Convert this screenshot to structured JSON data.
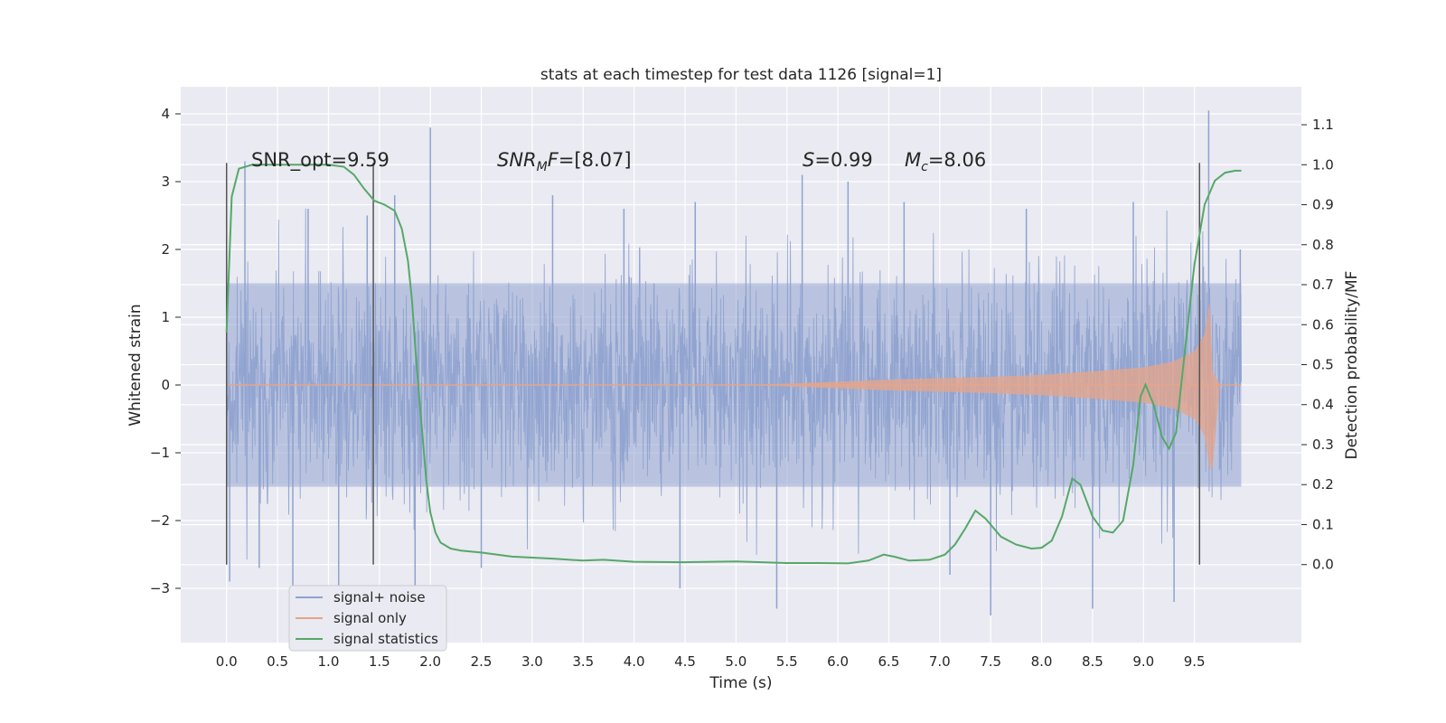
{
  "chart_data": {
    "type": "line",
    "title": "stats at each timestep for test data 1126 [signal=1]",
    "xlabel": "Time (s)",
    "ylabel_left": "Whitened strain",
    "ylabel_right": "Detection probability/MF",
    "xlim": [
      -0.45,
      10.55
    ],
    "ylim_left": [
      -3.8,
      4.4
    ],
    "ylim_right": [
      -0.195,
      1.195
    ],
    "x_ticks": [
      "0.0",
      "0.5",
      "1.0",
      "1.5",
      "2.0",
      "2.5",
      "3.0",
      "3.5",
      "4.0",
      "4.5",
      "5.0",
      "5.5",
      "6.0",
      "6.5",
      "7.0",
      "7.5",
      "8.0",
      "8.5",
      "9.0",
      "9.5"
    ],
    "y_ticks_left": [
      "4",
      "3",
      "2",
      "1",
      "0",
      "−1",
      "−2",
      "−3"
    ],
    "y_ticks_right": [
      "1.1",
      "1.0",
      "0.9",
      "0.8",
      "0.7",
      "0.6",
      "0.5",
      "0.4",
      "0.3",
      "0.2",
      "0.1",
      "0.0"
    ],
    "grid": true,
    "legend_position": "lower left",
    "series": [
      {
        "name": "signal+ noise",
        "color": "#8fa3cf",
        "axis": "left",
        "kind": "dense noise",
        "typical_band": [
          -1.5,
          1.5
        ],
        "values": [
          {
            "x": 0.0,
            "y": 2.0
          },
          {
            "x": 0.03,
            "y": -2.9
          },
          {
            "x": 0.18,
            "y": 3.3
          },
          {
            "x": 0.32,
            "y": -2.7
          },
          {
            "x": 0.65,
            "y": -3.1
          },
          {
            "x": 0.8,
            "y": 2.6
          },
          {
            "x": 1.1,
            "y": -3.0
          },
          {
            "x": 1.38,
            "y": 2.5
          },
          {
            "x": 1.65,
            "y": 2.8
          },
          {
            "x": 1.85,
            "y": -3.1
          },
          {
            "x": 2.0,
            "y": 3.8
          },
          {
            "x": 2.5,
            "y": -2.7
          },
          {
            "x": 3.2,
            "y": 2.8
          },
          {
            "x": 3.9,
            "y": 2.6
          },
          {
            "x": 4.45,
            "y": -3.0
          },
          {
            "x": 4.6,
            "y": 2.7
          },
          {
            "x": 5.4,
            "y": -3.3
          },
          {
            "x": 5.65,
            "y": 3.1
          },
          {
            "x": 6.1,
            "y": 3.0
          },
          {
            "x": 6.65,
            "y": 2.7
          },
          {
            "x": 7.1,
            "y": -2.8
          },
          {
            "x": 7.5,
            "y": -3.4
          },
          {
            "x": 7.85,
            "y": 2.6
          },
          {
            "x": 8.5,
            "y": -3.3
          },
          {
            "x": 8.9,
            "y": 2.7
          },
          {
            "x": 9.3,
            "y": -3.2
          },
          {
            "x": 9.64,
            "y": 4.05
          },
          {
            "x": 9.95,
            "y": 2.0
          }
        ]
      },
      {
        "name": "signal only",
        "color": "#e3a58c",
        "axis": "left",
        "kind": "chirp envelope",
        "values": [
          {
            "x": 0.0,
            "y": 0.0
          },
          {
            "x": 5.0,
            "y": 0.0
          },
          {
            "x": 5.5,
            "y": 0.02
          },
          {
            "x": 6.0,
            "y": 0.05
          },
          {
            "x": 6.5,
            "y": 0.08
          },
          {
            "x": 7.0,
            "y": 0.1
          },
          {
            "x": 7.5,
            "y": 0.12
          },
          {
            "x": 8.0,
            "y": 0.15
          },
          {
            "x": 8.5,
            "y": 0.2
          },
          {
            "x": 9.0,
            "y": 0.26
          },
          {
            "x": 9.3,
            "y": 0.35
          },
          {
            "x": 9.5,
            "y": 0.5
          },
          {
            "x": 9.6,
            "y": 0.75
          },
          {
            "x": 9.65,
            "y": 1.25
          },
          {
            "x": 9.68,
            "y": 0.2
          },
          {
            "x": 9.75,
            "y": 0.0
          },
          {
            "x": 10.0,
            "y": 0.0
          }
        ]
      },
      {
        "name": "signal statistics",
        "color": "#55a868",
        "axis": "right",
        "values": [
          {
            "x": 0.0,
            "y": 0.58
          },
          {
            "x": 0.05,
            "y": 0.92
          },
          {
            "x": 0.12,
            "y": 0.99
          },
          {
            "x": 0.25,
            "y": 1.0
          },
          {
            "x": 0.5,
            "y": 1.0
          },
          {
            "x": 1.0,
            "y": 1.0
          },
          {
            "x": 1.15,
            "y": 0.995
          },
          {
            "x": 1.25,
            "y": 0.975
          },
          {
            "x": 1.35,
            "y": 0.94
          },
          {
            "x": 1.45,
            "y": 0.91
          },
          {
            "x": 1.55,
            "y": 0.9
          },
          {
            "x": 1.65,
            "y": 0.885
          },
          {
            "x": 1.72,
            "y": 0.84
          },
          {
            "x": 1.78,
            "y": 0.76
          },
          {
            "x": 1.82,
            "y": 0.66
          },
          {
            "x": 1.85,
            "y": 0.55
          },
          {
            "x": 1.88,
            "y": 0.45
          },
          {
            "x": 1.92,
            "y": 0.33
          },
          {
            "x": 1.96,
            "y": 0.21
          },
          {
            "x": 2.0,
            "y": 0.13
          },
          {
            "x": 2.05,
            "y": 0.08
          },
          {
            "x": 2.1,
            "y": 0.055
          },
          {
            "x": 2.2,
            "y": 0.04
          },
          {
            "x": 2.3,
            "y": 0.035
          },
          {
            "x": 2.5,
            "y": 0.03
          },
          {
            "x": 2.8,
            "y": 0.02
          },
          {
            "x": 3.2,
            "y": 0.015
          },
          {
            "x": 3.5,
            "y": 0.01
          },
          {
            "x": 3.7,
            "y": 0.012
          },
          {
            "x": 4.0,
            "y": 0.007
          },
          {
            "x": 4.5,
            "y": 0.006
          },
          {
            "x": 5.0,
            "y": 0.008
          },
          {
            "x": 5.5,
            "y": 0.004
          },
          {
            "x": 5.8,
            "y": 0.004
          },
          {
            "x": 6.1,
            "y": 0.003
          },
          {
            "x": 6.3,
            "y": 0.01
          },
          {
            "x": 6.45,
            "y": 0.025
          },
          {
            "x": 6.55,
            "y": 0.02
          },
          {
            "x": 6.7,
            "y": 0.01
          },
          {
            "x": 6.9,
            "y": 0.012
          },
          {
            "x": 7.05,
            "y": 0.025
          },
          {
            "x": 7.15,
            "y": 0.05
          },
          {
            "x": 7.25,
            "y": 0.09
          },
          {
            "x": 7.35,
            "y": 0.135
          },
          {
            "x": 7.45,
            "y": 0.115
          },
          {
            "x": 7.6,
            "y": 0.07
          },
          {
            "x": 7.75,
            "y": 0.05
          },
          {
            "x": 7.9,
            "y": 0.04
          },
          {
            "x": 8.0,
            "y": 0.042
          },
          {
            "x": 8.1,
            "y": 0.06
          },
          {
            "x": 8.2,
            "y": 0.12
          },
          {
            "x": 8.3,
            "y": 0.215
          },
          {
            "x": 8.38,
            "y": 0.2
          },
          {
            "x": 8.5,
            "y": 0.12
          },
          {
            "x": 8.6,
            "y": 0.085
          },
          {
            "x": 8.7,
            "y": 0.08
          },
          {
            "x": 8.8,
            "y": 0.11
          },
          {
            "x": 8.9,
            "y": 0.25
          },
          {
            "x": 8.97,
            "y": 0.42
          },
          {
            "x": 9.02,
            "y": 0.45
          },
          {
            "x": 9.1,
            "y": 0.4
          },
          {
            "x": 9.18,
            "y": 0.32
          },
          {
            "x": 9.25,
            "y": 0.29
          },
          {
            "x": 9.32,
            "y": 0.33
          },
          {
            "x": 9.4,
            "y": 0.52
          },
          {
            "x": 9.5,
            "y": 0.75
          },
          {
            "x": 9.6,
            "y": 0.9
          },
          {
            "x": 9.7,
            "y": 0.96
          },
          {
            "x": 9.8,
            "y": 0.98
          },
          {
            "x": 9.9,
            "y": 0.985
          },
          {
            "x": 9.96,
            "y": 0.985
          }
        ]
      }
    ],
    "vertical_markers": [
      0.0,
      1.44,
      9.55
    ],
    "annotations": [
      {
        "text": "SNR_opt=9.59",
        "x": 0.2
      },
      {
        "text": "SNRMF=[8.07]",
        "x": 2.6
      },
      {
        "text": "S=0.99",
        "x": 5.6
      },
      {
        "text": "Mc=8.06",
        "x": 6.6
      }
    ]
  },
  "annotation_parts": {
    "snr_mf_base": "SNR",
    "snr_mf_sub": "M",
    "snr_mf_rest": "F=[8.07]",
    "s_symbol": "S",
    "s_value": "=0.99",
    "mc_base": "M",
    "mc_sub": "c",
    "mc_value": "=8.06"
  }
}
